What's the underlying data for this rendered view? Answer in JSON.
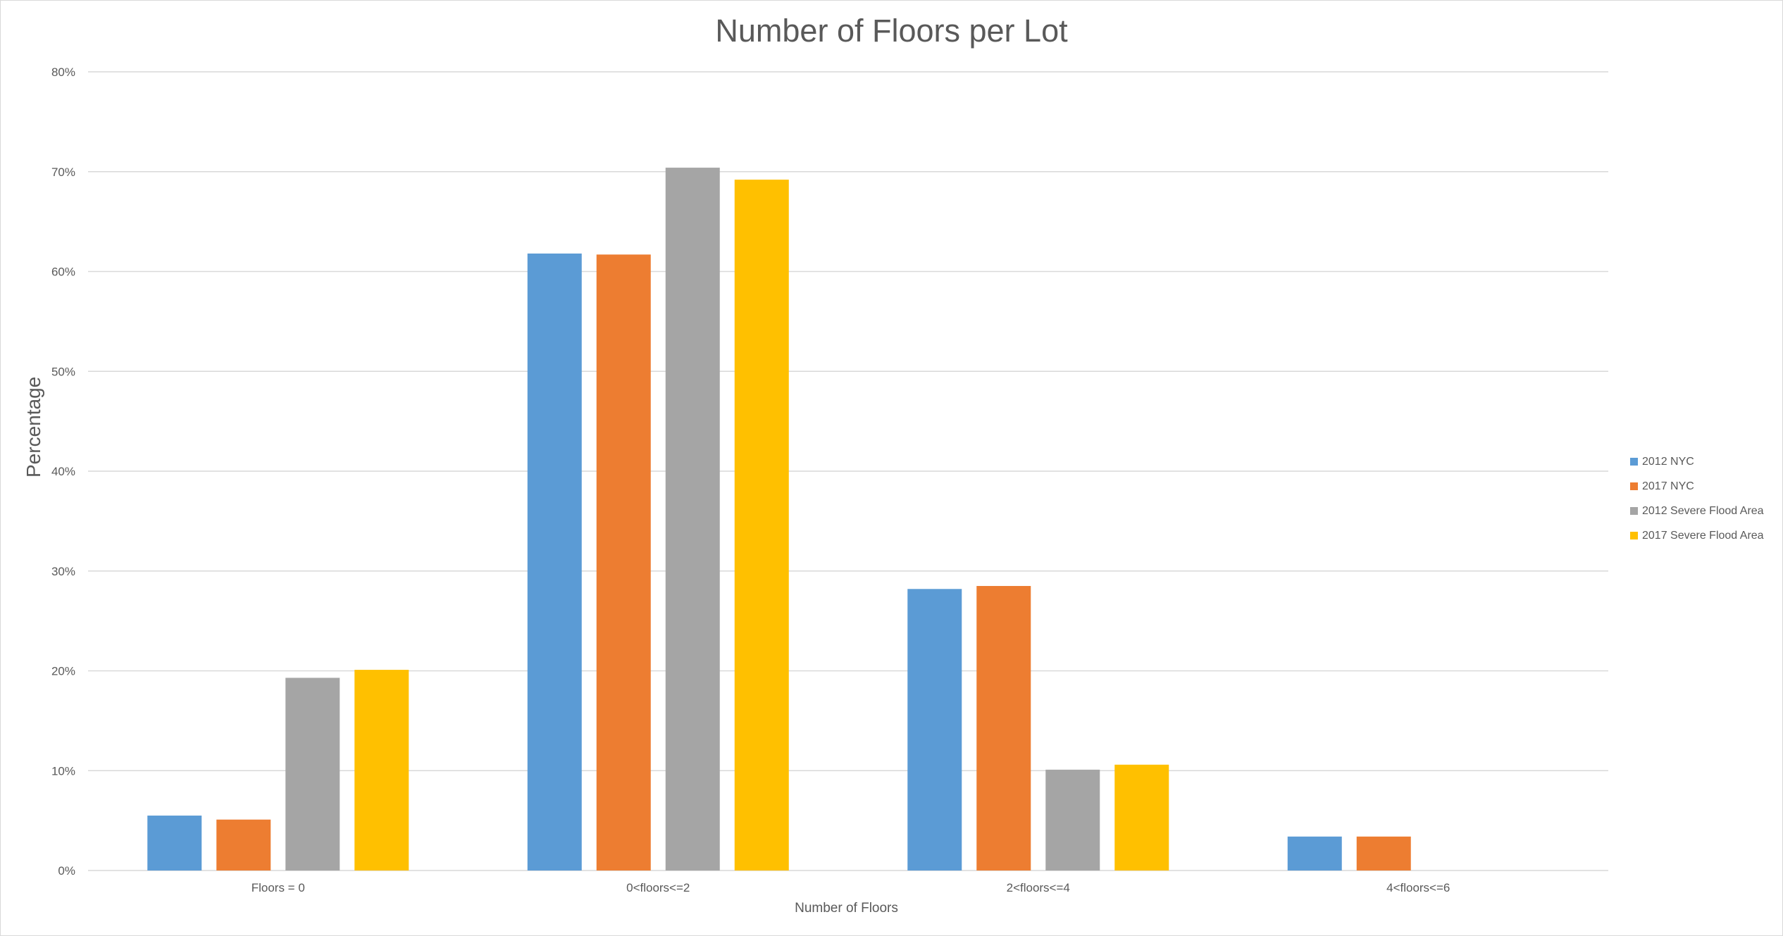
{
  "chart_data": {
    "type": "bar",
    "title": "Number of Floors per Lot",
    "xlabel": "Number of Floors",
    "ylabel": "Percentage",
    "categories": [
      "Floors = 0",
      "0<floors<=2",
      "2<floors<=4",
      "4<floors<=6"
    ],
    "ylim": [
      0,
      80
    ],
    "yticks": [
      "0%",
      "10%",
      "20%",
      "30%",
      "40%",
      "50%",
      "60%",
      "70%",
      "80%"
    ],
    "grid": true,
    "legend_position": "right",
    "series": [
      {
        "name": "2012 NYC",
        "color": "#5b9bd5",
        "values": [
          5.5,
          61.8,
          28.2,
          3.4
        ]
      },
      {
        "name": "2017 NYC",
        "color": "#ed7d31",
        "values": [
          5.1,
          61.7,
          28.5,
          3.4
        ]
      },
      {
        "name": "2012 Severe Flood Area",
        "color": "#a5a5a5",
        "values": [
          19.3,
          70.4,
          10.1,
          0
        ]
      },
      {
        "name": "2017 Severe Flood Area",
        "color": "#ffc000",
        "values": [
          20.1,
          69.2,
          10.6,
          0
        ]
      }
    ]
  }
}
